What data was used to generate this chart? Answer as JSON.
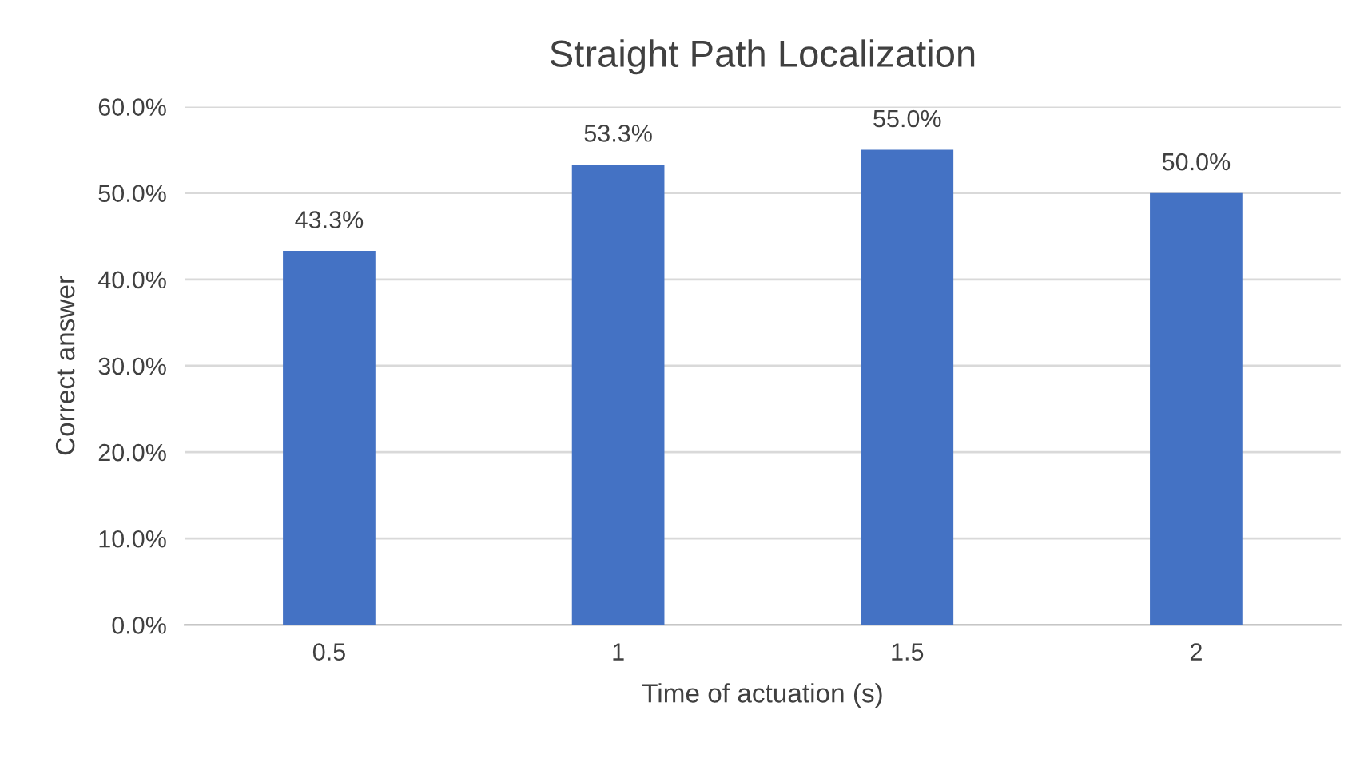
{
  "chart_data": {
    "type": "bar",
    "title": "Straight Path Localization",
    "xlabel": "Time of actuation (s)",
    "ylabel": "Correct answer",
    "categories": [
      "0.5",
      "1",
      "1.5",
      "2"
    ],
    "values": [
      43.3,
      53.3,
      55.0,
      50.0
    ],
    "value_labels": [
      "43.3%",
      "53.3%",
      "55.0%",
      "50.0%"
    ],
    "color": "#4472c4",
    "ylim": [
      0,
      60
    ],
    "yticks": [
      {
        "value": 0,
        "label": "0.0%"
      },
      {
        "value": 10,
        "label": "10.0%"
      },
      {
        "value": 20,
        "label": "20.0%"
      },
      {
        "value": 30,
        "label": "30.0%"
      },
      {
        "value": 40,
        "label": "40.0%"
      },
      {
        "value": 50,
        "label": "50.0%"
      },
      {
        "value": 60,
        "label": "60.0%"
      }
    ],
    "grid": "y"
  }
}
